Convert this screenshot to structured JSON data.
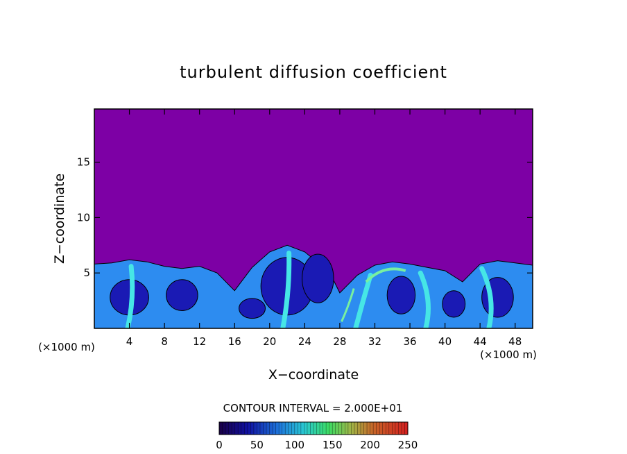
{
  "chart_data": {
    "type": "heatmap",
    "title": "turbulent diffusion coefficient",
    "xlabel": "X−coordinate",
    "ylabel": "Z−coordinate",
    "x_unit_left": "(×1000 m)",
    "x_unit_right": "(×1000 m)",
    "xlim": [
      0,
      50
    ],
    "ylim": [
      0,
      19.8
    ],
    "x_ticks": [
      "4",
      "8",
      "12",
      "16",
      "20",
      "24",
      "28",
      "32",
      "36",
      "40",
      "44",
      "48"
    ],
    "y_ticks": [
      "5",
      "10",
      "15"
    ],
    "contour_label": "CONTOUR INTERVAL = 2.000E+01",
    "colorbar": {
      "ticks": [
        "0",
        "50",
        "100",
        "150",
        "200",
        "250"
      ],
      "range": [
        0,
        250
      ]
    },
    "colors": {
      "background": "#7d00a5",
      "low": "#1a1ab4",
      "mid": "#2d8cf0",
      "high": "#46e6e6",
      "peak": "#78f0a0"
    },
    "boundary_layer": [
      [
        0,
        5.8
      ],
      [
        2,
        5.9
      ],
      [
        4,
        6.2
      ],
      [
        6,
        6.0
      ],
      [
        8,
        5.6
      ],
      [
        10,
        5.4
      ],
      [
        12,
        5.6
      ],
      [
        14,
        5.0
      ],
      [
        16,
        3.4
      ],
      [
        18,
        5.5
      ],
      [
        20,
        6.9
      ],
      [
        22,
        7.5
      ],
      [
        24,
        6.9
      ],
      [
        26,
        5.6
      ],
      [
        27,
        4.8
      ],
      [
        28,
        3.2
      ],
      [
        30,
        4.8
      ],
      [
        32,
        5.7
      ],
      [
        34,
        6.0
      ],
      [
        36,
        5.8
      ],
      [
        38,
        5.5
      ],
      [
        40,
        5.2
      ],
      [
        42,
        4.2
      ],
      [
        44,
        5.8
      ],
      [
        46,
        6.1
      ],
      [
        48,
        5.9
      ],
      [
        50,
        5.7
      ]
    ]
  }
}
